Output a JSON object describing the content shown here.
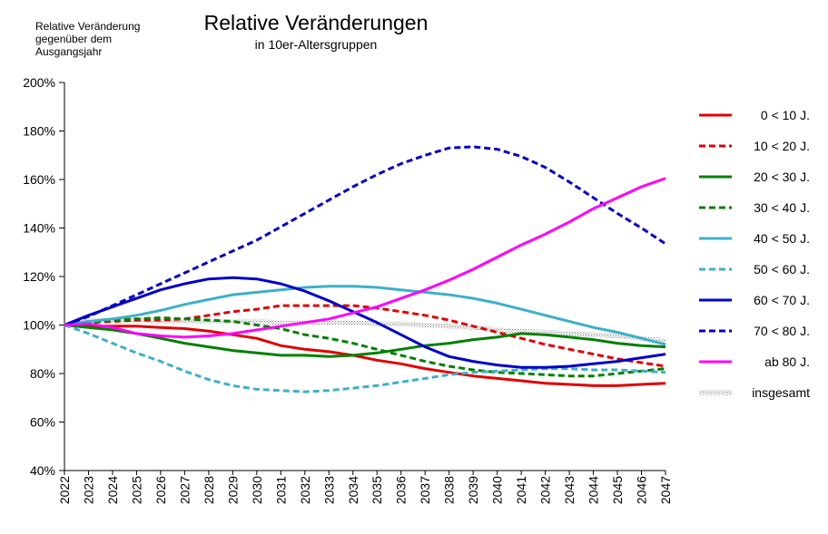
{
  "chart_data": {
    "type": "line",
    "title": "Relative Veränderungen",
    "subtitle": "in 10er-Altersgruppen",
    "ylabel": "Relative Veränderung\ngegenüber dem\nAusgangsjahr",
    "xlabel": "",
    "ylim": [
      40,
      200
    ],
    "y_ticks": [
      "40%",
      "60%",
      "80%",
      "100%",
      "120%",
      "140%",
      "160%",
      "180%",
      "200%"
    ],
    "x": [
      "2022",
      "2023",
      "2024",
      "2025",
      "2026",
      "2027",
      "2028",
      "2029",
      "2030",
      "2031",
      "2032",
      "2033",
      "2034",
      "2035",
      "2036",
      "2037",
      "2038",
      "2039",
      "2040",
      "2041",
      "2042",
      "2043",
      "2044",
      "2045",
      "2046",
      "2047"
    ],
    "grid": false,
    "legend_position": "right",
    "series": [
      {
        "name": "0 <  10  J.",
        "color": "#e00000",
        "dash": "solid",
        "values": [
          100,
          99.5,
          99.5,
          99.5,
          99,
          98.5,
          97.5,
          96,
          94.5,
          91.5,
          90,
          89,
          87.5,
          85.5,
          84,
          82,
          80.5,
          79,
          78,
          77,
          76,
          75.5,
          75,
          75,
          75.5,
          76
        ]
      },
      {
        "name": "10 <  20  J.",
        "color": "#e00000",
        "dash": "dash",
        "values": [
          100,
          101,
          101.5,
          102,
          102,
          102.5,
          104,
          105.5,
          106.5,
          108,
          108,
          108,
          108,
          107,
          105.5,
          104,
          102,
          99.5,
          97,
          94.5,
          92,
          90,
          88,
          86,
          84.5,
          83
        ]
      },
      {
        "name": "20 <  30  J.",
        "color": "#008000",
        "dash": "solid",
        "values": [
          100,
          99,
          98,
          96.5,
          94.5,
          92.5,
          91,
          89.5,
          88.5,
          87.5,
          87.5,
          87,
          87.5,
          88.5,
          90,
          91.5,
          92.5,
          94,
          95,
          96.5,
          96,
          95,
          94,
          92.5,
          91.5,
          91
        ]
      },
      {
        "name": "30 <  40  J.",
        "color": "#008000",
        "dash": "dash",
        "values": [
          100,
          101,
          102,
          102.5,
          103,
          102.5,
          102,
          101.5,
          100,
          98.5,
          96,
          94.5,
          92.5,
          90,
          87.5,
          85,
          83,
          81.5,
          80.5,
          80,
          79.5,
          79,
          79,
          80,
          81,
          82
        ]
      },
      {
        "name": "40 <  50  J.",
        "color": "#3cb0c8",
        "dash": "solid",
        "values": [
          100,
          101.5,
          102.5,
          104,
          106,
          108.5,
          110.5,
          112.5,
          113.5,
          114.5,
          115.5,
          116,
          116,
          115.5,
          114.5,
          113.5,
          112.5,
          111,
          109,
          106.5,
          104,
          101.5,
          99,
          97,
          94.5,
          92
        ]
      },
      {
        "name": "50 <  60  J.",
        "color": "#3cb0c8",
        "dash": "dash",
        "values": [
          100,
          96.5,
          92.5,
          88.5,
          85,
          81,
          77.5,
          75,
          73.5,
          73,
          72.5,
          73,
          74,
          75,
          76.5,
          78,
          79.5,
          80.5,
          81,
          81.5,
          82,
          82,
          81.5,
          81.5,
          81,
          80.5
        ]
      },
      {
        "name": "60 <  70  J.",
        "color": "#0000c8",
        "dash": "solid",
        "values": [
          100,
          104,
          107.5,
          111,
          114.5,
          117,
          119,
          119.5,
          119,
          117,
          114,
          110,
          105.5,
          101,
          96,
          91,
          87,
          85,
          83.5,
          82.5,
          82.5,
          83,
          84,
          85,
          86.5,
          88
        ]
      },
      {
        "name": "70 <  80  J.",
        "color": "#0000c8",
        "dash": "dash",
        "values": [
          100,
          103.5,
          108,
          112.5,
          117,
          121.5,
          126,
          130.5,
          135,
          140.5,
          146,
          151.5,
          157,
          162,
          166.5,
          170,
          173,
          173.5,
          172.5,
          169.5,
          165,
          159,
          152.5,
          146,
          140,
          133.5
        ]
      },
      {
        "name": "ab 80  J.",
        "color": "#ff00ff",
        "dash": "solid",
        "values": [
          100,
          100.5,
          99,
          96.5,
          95.5,
          95,
          95.5,
          96.5,
          98,
          99.5,
          101,
          102.5,
          105,
          107.5,
          111,
          114.5,
          118.5,
          123,
          128,
          133,
          137.5,
          142.5,
          148,
          152.5,
          157,
          160.5
        ]
      },
      {
        "name": "insgesamt",
        "color": "#888888",
        "dash": "hatch",
        "values": [
          100,
          101.5,
          102,
          102,
          101.5,
          101.5,
          101.5,
          101.5,
          101.5,
          101,
          101,
          101,
          101,
          100.5,
          100.5,
          100,
          99.5,
          99,
          98,
          97.5,
          97,
          96.5,
          96,
          95.5,
          94.5,
          93.5
        ]
      }
    ]
  }
}
